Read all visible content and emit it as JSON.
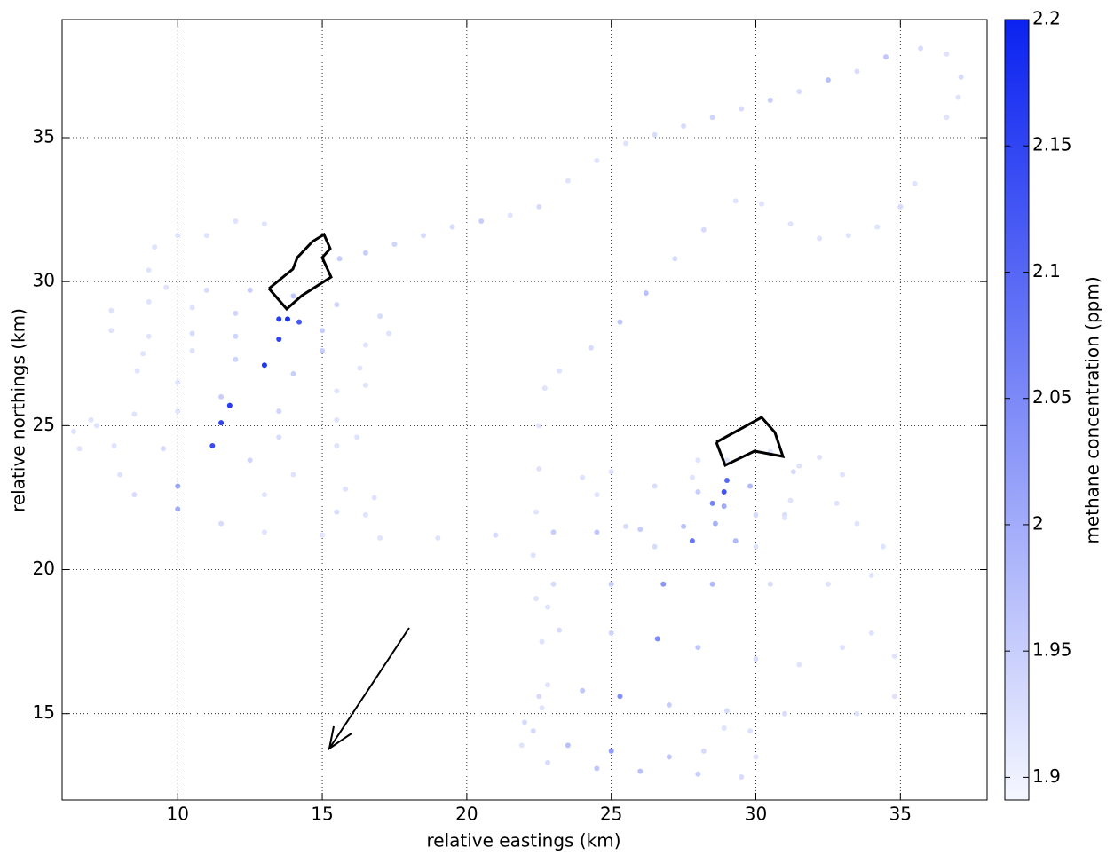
{
  "chart_data": {
    "type": "scatter",
    "xlabel": "relative eastings (km)",
    "ylabel": "relative northings (km)",
    "colorbar_label": "methane concentration (ppm)",
    "xlim": [
      6,
      38
    ],
    "ylim": [
      12,
      39.1
    ],
    "xticks": [
      10,
      15,
      20,
      25,
      30,
      35
    ],
    "yticks": [
      15,
      20,
      25,
      30,
      35
    ],
    "clim": [
      1.891,
      2.2
    ],
    "cticks": [
      1.9,
      1.95,
      2,
      2.05,
      2.1,
      2.15,
      2.2
    ],
    "colormap": [
      "#f5f7ff",
      "#0a22f0"
    ],
    "grid": true,
    "x": [
      36.6,
      37.0,
      37.1,
      36.6,
      35.7,
      34.5,
      33.5,
      32.5,
      31.5,
      30.5,
      29.5,
      28.5,
      27.5,
      26.5,
      25.5,
      24.5,
      23.5,
      22.5,
      21.5,
      20.5,
      19.5,
      18.5,
      17.5,
      16.5,
      15.6,
      13.0,
      12.0,
      11.0,
      10.0,
      9.2,
      9.0,
      9.6,
      11.0,
      12.5,
      14.0,
      15.5,
      17.0,
      17.3,
      16.5,
      15.0,
      14.2,
      13.8,
      13.5,
      12.0,
      10.5,
      9.0,
      7.7,
      7.7,
      9.0,
      10.5,
      12.0,
      13.5,
      15.0,
      16.3,
      16.5,
      15.5,
      14.0,
      13.0,
      12.0,
      10.5,
      8.8,
      8.6,
      10.0,
      11.5,
      11.8,
      13.5,
      15.5,
      16.2,
      15.5,
      13.5,
      11.5,
      10.0,
      8.5,
      7.2,
      7.8,
      9.5,
      11.2,
      12.5,
      14.0,
      15.8,
      16.8,
      16.5,
      15.5,
      13.0,
      10.0,
      8.0,
      6.6,
      6.4,
      7.0,
      8.5,
      10.0,
      11.5,
      13.0,
      15.0,
      17.0,
      19.0,
      21.0,
      23.0,
      24.5,
      26.0,
      27.5,
      28.6,
      35.5,
      35.0,
      34.2,
      33.2,
      32.2,
      31.2,
      30.2,
      29.3,
      28.2,
      27.2,
      26.2,
      25.3,
      24.3,
      23.2,
      22.7,
      22.5,
      22.5,
      22.4,
      22.3,
      22.4,
      22.6,
      22.8,
      22.6,
      22.0,
      21.9,
      22.8,
      24.5,
      26.0,
      28.0,
      29.5,
      30.0,
      29.8,
      28.9,
      28.2,
      27.0,
      25.0,
      23.5,
      22.3,
      22.5,
      24.0,
      25.3,
      27.0,
      29.0,
      31.0,
      33.5,
      34.8,
      34.8,
      34.0,
      33.0,
      31.5,
      30.0,
      28.0,
      26.6,
      25.0,
      23.2,
      22.8,
      23.0,
      25.0,
      26.8,
      28.5,
      30.5,
      32.5,
      34.0,
      34.4,
      33.5,
      31.0,
      29.3,
      27.8,
      26.5,
      25.5,
      24.5,
      24.0,
      25.0,
      26.5,
      28.0,
      28.9,
      29.0,
      29.8,
      31.3,
      32.2,
      33.0,
      32.8,
      31.0,
      30.0,
      29.0,
      28.0,
      27.8,
      28.5,
      28.9,
      30.0,
      31.2,
      31.5,
      30.5
    ],
    "y": [
      35.7,
      36.4,
      37.1,
      37.9,
      38.1,
      37.8,
      37.3,
      37.0,
      36.6,
      36.3,
      36.0,
      35.7,
      35.4,
      35.1,
      34.8,
      34.2,
      33.5,
      32.6,
      32.3,
      32.1,
      31.9,
      31.6,
      31.3,
      31.0,
      30.8,
      32.0,
      32.1,
      31.6,
      31.6,
      31.2,
      30.4,
      29.8,
      29.7,
      29.7,
      29.5,
      29.2,
      28.8,
      28.2,
      27.8,
      28.3,
      28.6,
      28.7,
      28.7,
      28.9,
      29.1,
      29.3,
      29.0,
      28.3,
      28.1,
      28.2,
      28.1,
      28.0,
      27.6,
      27.0,
      26.4,
      26.2,
      26.8,
      27.1,
      27.3,
      27.6,
      27.5,
      26.9,
      26.5,
      26.0,
      25.7,
      25.5,
      25.2,
      24.6,
      24.3,
      24.6,
      25.1,
      25.5,
      25.4,
      25.0,
      24.3,
      24.2,
      24.3,
      23.8,
      23.3,
      22.8,
      22.5,
      21.9,
      22.0,
      22.6,
      22.9,
      23.3,
      24.2,
      24.8,
      25.2,
      22.6,
      22.1,
      21.6,
      21.3,
      21.2,
      21.1,
      21.1,
      21.2,
      21.3,
      21.3,
      21.4,
      21.5,
      21.6,
      33.4,
      32.6,
      31.9,
      31.6,
      31.5,
      32.0,
      32.7,
      32.8,
      31.8,
      30.8,
      29.6,
      28.6,
      27.7,
      26.9,
      26.3,
      25.0,
      23.5,
      22.0,
      20.5,
      19.0,
      17.5,
      16.0,
      15.2,
      14.7,
      13.9,
      13.3,
      13.1,
      13.0,
      12.9,
      12.8,
      13.5,
      14.4,
      14.5,
      13.7,
      13.5,
      13.7,
      13.9,
      14.4,
      15.6,
      15.8,
      15.6,
      15.3,
      15.1,
      15.0,
      15.0,
      15.6,
      17.0,
      17.8,
      17.3,
      16.7,
      16.9,
      17.3,
      17.6,
      17.8,
      17.9,
      18.7,
      19.5,
      19.5,
      19.5,
      19.5,
      19.5,
      19.5,
      19.8,
      20.8,
      21.6,
      21.9,
      21.0,
      21.0,
      20.8,
      21.5,
      22.6,
      23.2,
      23.4,
      22.9,
      22.7,
      22.7,
      23.1,
      22.9,
      23.4,
      23.9,
      23.3,
      22.3,
      21.8,
      20.8,
      23.8,
      23.8,
      23.2,
      22.3,
      22.2,
      21.9,
      22.4,
      23.6,
      24.1
    ],
    "values": [
      1.92,
      1.92,
      1.93,
      1.92,
      1.93,
      1.96,
      1.93,
      1.97,
      1.93,
      1.95,
      1.93,
      1.94,
      1.93,
      1.93,
      1.92,
      1.92,
      1.92,
      1.93,
      1.92,
      1.95,
      1.93,
      1.93,
      1.94,
      1.95,
      1.95,
      1.92,
      1.92,
      1.92,
      1.92,
      1.92,
      1.92,
      1.92,
      1.93,
      1.95,
      1.96,
      1.94,
      1.93,
      1.92,
      1.92,
      1.95,
      2.12,
      2.18,
      2.16,
      1.94,
      1.92,
      1.92,
      1.92,
      1.92,
      1.92,
      1.93,
      1.94,
      2.15,
      1.95,
      1.92,
      1.92,
      1.92,
      1.95,
      2.17,
      1.94,
      1.92,
      1.92,
      1.92,
      1.92,
      1.95,
      2.16,
      1.94,
      1.92,
      1.92,
      1.92,
      1.93,
      2.15,
      1.92,
      1.92,
      1.92,
      1.92,
      1.93,
      2.14,
      1.94,
      1.92,
      1.92,
      1.92,
      1.92,
      1.93,
      1.92,
      2.01,
      1.92,
      1.92,
      1.92,
      1.92,
      1.93,
      2.0,
      1.93,
      1.92,
      1.92,
      1.92,
      1.92,
      1.93,
      1.95,
      1.96,
      1.95,
      1.97,
      1.99,
      1.92,
      1.93,
      1.92,
      1.92,
      1.92,
      1.92,
      1.92,
      1.92,
      1.93,
      1.93,
      1.97,
      1.96,
      1.93,
      1.92,
      1.92,
      1.92,
      1.92,
      1.92,
      1.92,
      1.92,
      1.92,
      1.92,
      1.92,
      1.93,
      1.92,
      1.93,
      1.96,
      1.97,
      1.95,
      1.93,
      1.92,
      1.92,
      1.92,
      1.93,
      1.96,
      2.02,
      1.97,
      1.93,
      1.93,
      1.96,
      2.04,
      1.95,
      1.93,
      1.93,
      1.92,
      1.92,
      1.92,
      1.92,
      1.92,
      1.92,
      1.93,
      1.96,
      2.05,
      1.94,
      1.93,
      1.92,
      1.93,
      1.95,
      2.03,
      1.98,
      1.93,
      1.92,
      1.92,
      1.92,
      1.92,
      1.93,
      1.98,
      2.08,
      1.93,
      1.93,
      1.92,
      1.92,
      1.92,
      1.93,
      1.95,
      2.13,
      2.1,
      1.98,
      1.93,
      1.92,
      1.92,
      1.92,
      1.92,
      1.92,
      1.92,
      1.92,
      1.92,
      2.06,
      2.0,
      1.93,
      1.92,
      1.92,
      1.92
    ]
  }
}
